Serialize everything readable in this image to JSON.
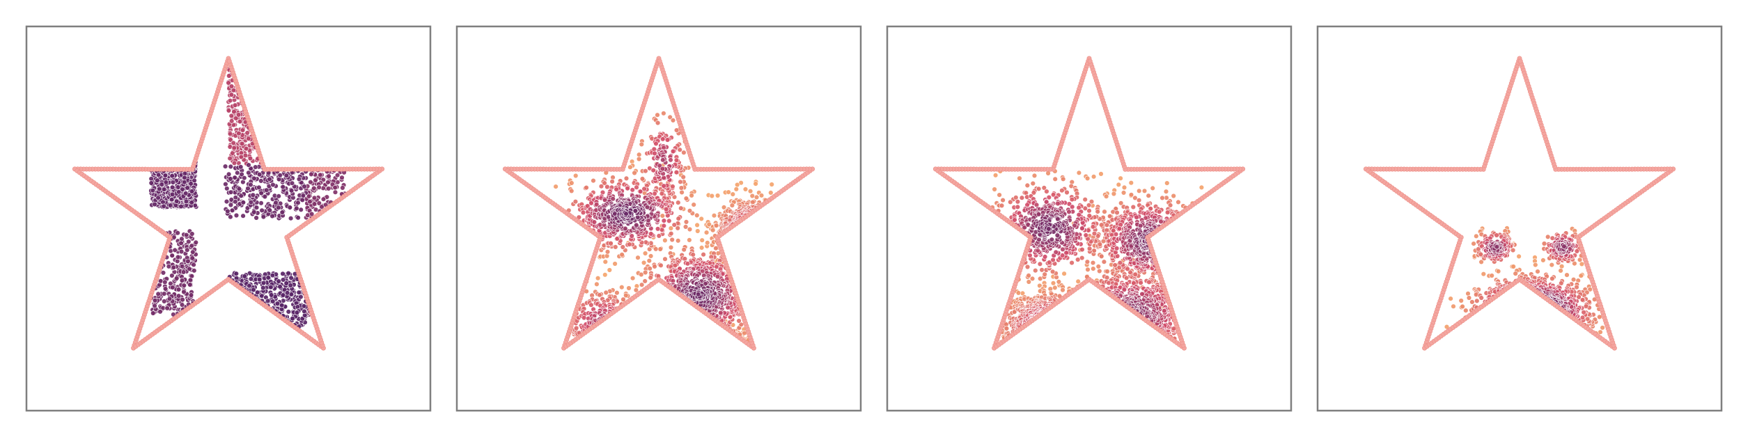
{
  "figure": {
    "panel_count": 4
  },
  "colors": {
    "boundary": "#f4a6a0",
    "boundary_edge": "#ec8f88",
    "density_low": "#f6a86c",
    "density_mid": "#d24d6a",
    "density_high": "#4a1f66",
    "frame": "#7f7f7f"
  },
  "chart_data": [
    {
      "type": "scatter",
      "title": "",
      "xlabel": "",
      "ylabel": "",
      "grid": false,
      "legend": "none",
      "xlim": [
        -1.25,
        1.25
      ],
      "ylim": [
        -1.2,
        1.2
      ],
      "boundary": {
        "shape": "five-point star",
        "outer_radius": 1.0,
        "inner_radius": 0.38,
        "points_per_edge": 40
      },
      "series": [
        {
          "name": "particles",
          "count": 1800,
          "regions": [
            {
              "kind": "rect",
              "x": [
                -0.48,
                -0.2
              ],
              "y": [
                0.07,
                0.94
              ],
              "density": 0.9
            },
            {
              "kind": "rect",
              "x": [
                -0.48,
                -0.2
              ],
              "y": [
                -0.6,
                -0.07
              ],
              "density": 0.85
            },
            {
              "kind": "rect",
              "x": [
                -0.02,
                0.48
              ],
              "y": [
                0.0,
                0.34
              ],
              "density": 0.88
            },
            {
              "kind": "rect",
              "x": [
                -0.02,
                0.48
              ],
              "y": [
                -0.68,
                -0.34
              ],
              "density": 0.95
            },
            {
              "kind": "rect",
              "x": [
                0.48,
                0.72
              ],
              "y": [
                0.0,
                0.34
              ],
              "density": 0.8
            },
            {
              "kind": "rect",
              "x": [
                -0.48,
                -0.2
              ],
              "y": [
                -0.34,
                0.07
              ],
              "density": 0.0
            },
            {
              "kind": "rect",
              "x": [
                -0.48,
                -0.2
              ],
              "y": [
                -0.96,
                -0.6
              ],
              "density": 0.0
            },
            {
              "kind": "rect",
              "x": [
                0.48,
                0.72
              ],
              "y": [
                -0.6,
                -0.34
              ],
              "density": 0.8
            },
            {
              "kind": "rect",
              "x": [
                0.72,
                0.96
              ],
              "y": [
                -0.34,
                0.0
              ],
              "density": 0.85
            },
            {
              "kind": "rect",
              "x": [
                0.72,
                0.96
              ],
              "y": [
                -0.98,
                -0.6
              ],
              "density": 0.7
            },
            {
              "kind": "rect",
              "x": [
                -0.02,
                0.48
              ],
              "y": [
                -0.34,
                0.0
              ],
              "density": 0.0
            },
            {
              "kind": "rect",
              "x": [
                0.0,
                0.28
              ],
              "y": [
                0.34,
                0.94
              ],
              "density": 0.6
            }
          ]
        }
      ]
    },
    {
      "type": "scatter",
      "title": "",
      "xlabel": "",
      "ylabel": "",
      "grid": false,
      "legend": "none",
      "xlim": [
        -1.25,
        1.25
      ],
      "ylim": [
        -1.2,
        1.2
      ],
      "boundary": {
        "shape": "five-point star",
        "outer_radius": 1.0,
        "inner_radius": 0.38,
        "points_per_edge": 40
      },
      "series": [
        {
          "name": "particles",
          "count": 1700,
          "regions": [
            {
              "kind": "blob",
              "center": [
                -0.2,
                0.03
              ],
              "sigma": [
                0.18,
                0.11
              ],
              "weight": 0.34
            },
            {
              "kind": "blob",
              "center": [
                0.25,
                -0.48
              ],
              "sigma": [
                0.17,
                0.14
              ],
              "weight": 0.32
            },
            {
              "kind": "blob",
              "center": [
                0.58,
                -0.1
              ],
              "sigma": [
                0.11,
                0.1
              ],
              "weight": 0.12
            },
            {
              "kind": "blob",
              "center": [
                0.03,
                0.35
              ],
              "sigma": [
                0.07,
                0.15
              ],
              "weight": 0.1
            },
            {
              "kind": "blob",
              "center": [
                -0.35,
                -0.65
              ],
              "sigma": [
                0.12,
                0.1
              ],
              "weight": 0.08
            },
            {
              "kind": "blob",
              "center": [
                0.4,
                -0.82
              ],
              "sigma": [
                0.06,
                0.06
              ],
              "weight": 0.04
            }
          ]
        }
      ]
    },
    {
      "type": "scatter",
      "title": "",
      "xlabel": "",
      "ylabel": "",
      "grid": false,
      "legend": "none",
      "xlim": [
        -1.25,
        1.25
      ],
      "ylim": [
        -1.2,
        1.2
      ],
      "boundary": {
        "shape": "five-point star",
        "outer_radius": 1.0,
        "inner_radius": 0.38,
        "points_per_edge": 40
      },
      "series": [
        {
          "name": "particles",
          "count": 1700,
          "regions": [
            {
              "kind": "blob",
              "center": [
                -0.25,
                -0.06
              ],
              "sigma": [
                0.17,
                0.14
              ],
              "weight": 0.3
            },
            {
              "kind": "blob",
              "center": [
                0.37,
                -0.14
              ],
              "sigma": [
                0.16,
                0.13
              ],
              "weight": 0.28
            },
            {
              "kind": "blob",
              "center": [
                0.25,
                -0.6
              ],
              "sigma": [
                0.2,
                0.14
              ],
              "weight": 0.24
            },
            {
              "kind": "blob",
              "center": [
                -0.2,
                -0.68
              ],
              "sigma": [
                0.16,
                0.1
              ],
              "weight": 0.18
            }
          ]
        }
      ]
    },
    {
      "type": "scatter",
      "title": "",
      "xlabel": "",
      "ylabel": "",
      "grid": false,
      "legend": "none",
      "xlim": [
        -1.25,
        1.25
      ],
      "ylim": [
        -1.2,
        1.2
      ],
      "boundary": {
        "shape": "five-point star",
        "outer_radius": 1.0,
        "inner_radius": 0.38,
        "points_per_edge": 40
      },
      "series": [
        {
          "name": "particles",
          "count": 650,
          "regions": [
            {
              "kind": "blob",
              "center": [
                -0.15,
                -0.18
              ],
              "sigma": [
                0.06,
                0.05
              ],
              "weight": 0.22
            },
            {
              "kind": "blob",
              "center": [
                0.27,
                -0.18
              ],
              "sigma": [
                0.06,
                0.05
              ],
              "weight": 0.22
            },
            {
              "kind": "blob",
              "center": [
                0.08,
                -0.58
              ],
              "sigma": [
                0.17,
                0.1
              ],
              "weight": 0.56
            }
          ]
        }
      ]
    }
  ]
}
